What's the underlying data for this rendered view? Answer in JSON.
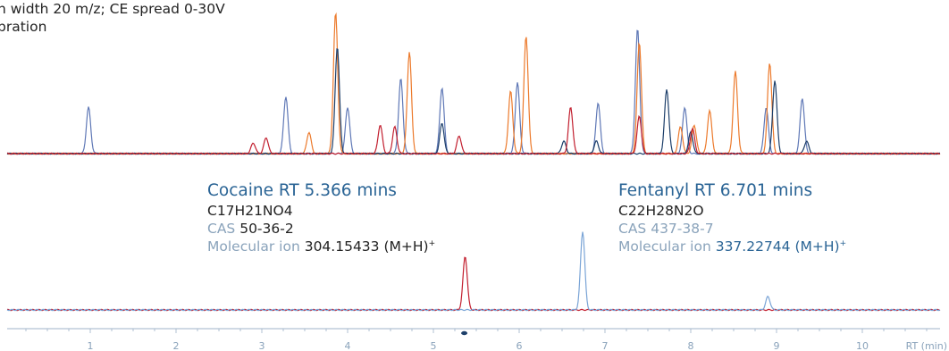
{
  "header_fragment": {
    "line1": "n width 20 m/z; CE spread 0-30V",
    "line2": "bration"
  },
  "cocaine": {
    "name": "Cocaine RT 5.366 mins",
    "formula": "C17H21NO4",
    "cas_label": "CAS",
    "cas_value": "50-36-2",
    "ion_label": "Molecular ion",
    "ion_value": "304.15433 (M+H)",
    "ion_sup": "+"
  },
  "fentanyl": {
    "name": "Fentanyl RT 6.701 mins",
    "formula": "C22H28N2O",
    "cas_label": "CAS",
    "cas_value": "437-38-7",
    "ion_label": "Molecular ion",
    "ion_value": "337.22744 (M+H)",
    "ion_sup": "+"
  },
  "colors": {
    "red": "#c21f2f",
    "orange": "#ec7a2c",
    "navy": "#1d3f6a",
    "blue": "#5f78b6",
    "light_blue": "#7aa4d6"
  },
  "chart_data": {
    "type": "line",
    "x_range": [
      0,
      11.1
    ],
    "xlabel": "RT (min)",
    "x_ticks": [
      1,
      2,
      3,
      4,
      5,
      6,
      7,
      8,
      9,
      10
    ],
    "top_panel": {
      "series": [
        {
          "color_key": "blue",
          "peaks": [
            [
              0.98,
              52
            ],
            [
              3.28,
              64
            ],
            [
              4.0,
              52
            ],
            [
              4.62,
              84
            ],
            [
              5.1,
              74
            ],
            [
              5.98,
              80
            ],
            [
              6.92,
              57
            ],
            [
              7.38,
              140
            ],
            [
              7.93,
              52
            ],
            [
              8.88,
              52
            ],
            [
              9.3,
              62
            ]
          ]
        },
        {
          "color_key": "orange",
          "peaks": [
            [
              3.55,
              24
            ],
            [
              3.86,
              158
            ],
            [
              4.72,
              114
            ],
            [
              5.9,
              70
            ],
            [
              6.08,
              132
            ],
            [
              7.4,
              125
            ],
            [
              7.88,
              30
            ],
            [
              8.04,
              32
            ],
            [
              8.22,
              48
            ],
            [
              8.52,
              92
            ],
            [
              8.92,
              102
            ]
          ]
        },
        {
          "color_key": "navy",
          "peaks": [
            [
              3.88,
              120
            ],
            [
              5.1,
              34
            ],
            [
              6.52,
              14
            ],
            [
              6.9,
              14
            ],
            [
              7.72,
              72
            ],
            [
              8.0,
              24
            ],
            [
              8.98,
              82
            ],
            [
              9.35,
              14
            ]
          ]
        },
        {
          "color_key": "red",
          "peaks": [
            [
              2.9,
              12
            ],
            [
              3.05,
              18
            ],
            [
              4.38,
              32
            ],
            [
              4.55,
              30
            ],
            [
              5.3,
              20
            ],
            [
              6.6,
              52
            ],
            [
              7.4,
              42
            ],
            [
              8.02,
              28
            ]
          ]
        }
      ]
    },
    "bottom_panel": {
      "series": [
        {
          "color_key": "red",
          "peaks": [
            [
              5.37,
              60
            ]
          ]
        },
        {
          "color_key": "light_blue",
          "peaks": [
            [
              6.74,
              88
            ],
            [
              8.9,
              15
            ]
          ]
        }
      ]
    }
  }
}
